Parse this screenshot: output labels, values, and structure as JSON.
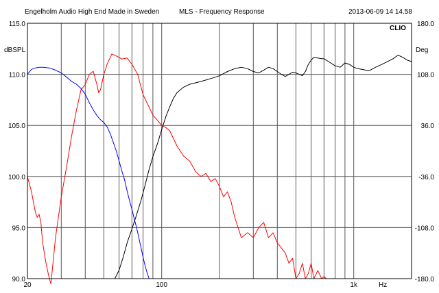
{
  "header": {
    "left": "Engelholm Audio High End Made in Sweden",
    "center": "MLS - Frequency Response",
    "right": "2013-06-09 14 14.58",
    "brand": "CLIO"
  },
  "chart_data": {
    "type": "line",
    "xscale": "log",
    "xlim": [
      20,
      2000
    ],
    "ylabel": "dBSPL",
    "ylim": [
      90,
      115
    ],
    "y2label": "Deg",
    "y2lim": [
      -180,
      180
    ],
    "xunit": "Hz",
    "x_tick_labels": [
      {
        "value": 20,
        "label": "20"
      },
      {
        "value": 100,
        "label": "100"
      },
      {
        "value": 1000,
        "label": "1k"
      }
    ],
    "y_ticks": [
      {
        "value": 115,
        "label": "115.0"
      },
      {
        "value": 110,
        "label": "110.0"
      },
      {
        "value": 105,
        "label": "105.0"
      },
      {
        "value": 100,
        "label": "100.0"
      },
      {
        "value": 95,
        "label": "95.0"
      },
      {
        "value": 90,
        "label": "90.0"
      }
    ],
    "y2_ticks": [
      {
        "value": 180,
        "label": "180.0"
      },
      {
        "value": 108,
        "label": "108.0"
      },
      {
        "value": 36,
        "label": "36.0"
      },
      {
        "value": -36,
        "label": "-36.0"
      },
      {
        "value": -108,
        "label": "-108.0"
      },
      {
        "value": -180,
        "label": "-180.0"
      }
    ],
    "grid": true,
    "series": [
      {
        "color": "#ff0000",
        "axis": "left",
        "x": [
          20,
          21,
          22,
          22.5,
          23,
          23.5,
          24,
          25,
          26,
          26.5,
          27,
          28,
          30,
          32,
          34,
          36,
          38,
          40,
          42,
          44,
          46,
          47,
          48,
          50,
          52,
          55,
          58,
          62,
          66,
          70,
          75,
          80,
          85,
          90,
          95,
          100,
          105,
          110,
          120,
          130,
          140,
          150,
          160,
          170,
          180,
          190,
          200,
          210,
          220,
          230,
          240,
          250,
          260,
          280,
          300,
          320,
          340,
          360,
          380,
          400,
          420,
          440,
          460,
          480,
          500,
          520,
          540,
          560,
          580,
          600,
          620,
          650,
          680,
          700,
          720,
          750
        ],
        "values": [
          100.0,
          98.5,
          96.5,
          96.0,
          96.3,
          95.5,
          93.5,
          91.5,
          90.0,
          89.5,
          91.0,
          94.0,
          98.0,
          101.0,
          104.0,
          106.5,
          108.5,
          109.0,
          110.0,
          110.3,
          109.0,
          108.2,
          108.5,
          110.0,
          111.0,
          112.0,
          111.8,
          111.5,
          111.6,
          111.0,
          110.0,
          108.0,
          107.0,
          106.0,
          105.5,
          105.0,
          104.8,
          104.5,
          103.0,
          102.0,
          101.5,
          100.5,
          100.0,
          100.3,
          99.5,
          99.8,
          99.0,
          98.0,
          98.5,
          97.5,
          96.0,
          95.0,
          94.0,
          94.5,
          94.0,
          95.0,
          95.5,
          94.0,
          94.5,
          93.5,
          93.0,
          92.5,
          91.5,
          92.0,
          90.0,
          90.5,
          91.5,
          90.0,
          90.5,
          91.5,
          90.0,
          90.8,
          90.0,
          90.2,
          90.0,
          90.0
        ]
      },
      {
        "color": "#0000ff",
        "axis": "right",
        "x": [
          20,
          21,
          22,
          23,
          24,
          26,
          28,
          30,
          32,
          34,
          36,
          38,
          40,
          42,
          44,
          46,
          48,
          50,
          52,
          54,
          56,
          58,
          60,
          62,
          64,
          66,
          68,
          70,
          72,
          74,
          76,
          78,
          80,
          82,
          84,
          86,
          88,
          90,
          95,
          100,
          200,
          500,
          1000,
          2000
        ],
        "values": [
          108,
          115,
          117,
          118,
          118,
          117,
          114,
          110,
          104,
          98,
          94,
          88,
          80,
          68,
          58,
          50,
          44,
          40,
          34,
          24,
          12,
          0,
          -14,
          -28,
          -40,
          -56,
          -70,
          -82,
          -96,
          -108,
          -122,
          -136,
          -150,
          -162,
          -172,
          -180,
          -180,
          -180,
          -180,
          -180,
          -180,
          -180,
          -180,
          -180
        ]
      },
      {
        "color": "#000000",
        "axis": "right",
        "x": [
          20,
          30,
          40,
          50,
          55,
          57,
          60,
          63,
          66,
          70,
          74,
          78,
          82,
          86,
          90,
          95,
          100,
          105,
          110,
          115,
          120,
          130,
          140,
          150,
          160,
          170,
          180,
          200,
          220,
          240,
          260,
          280,
          300,
          320,
          340,
          360,
          380,
          400,
          420,
          440,
          460,
          480,
          500,
          520,
          540,
          560,
          580,
          600,
          620,
          650,
          680,
          700,
          720,
          760,
          800,
          850,
          900,
          950,
          1000,
          1050,
          1100,
          1200,
          1300,
          1400,
          1500,
          1600,
          1700,
          1800,
          1900,
          2000
        ],
        "values": [
          -180,
          -180,
          -180,
          -180,
          -180,
          -180,
          -168,
          -150,
          -130,
          -110,
          -90,
          -70,
          -48,
          -26,
          -8,
          10,
          30,
          48,
          62,
          74,
          82,
          90,
          94,
          96,
          98,
          100,
          102,
          106,
          112,
          116,
          118,
          116,
          112,
          110,
          114,
          118,
          116,
          112,
          108,
          105,
          108,
          111,
          110,
          108,
          106,
          112,
          122,
          128,
          132,
          131,
          130,
          130,
          128,
          124,
          120,
          118,
          124,
          122,
          118,
          116,
          115,
          113,
          118,
          122,
          126,
          130,
          135,
          132,
          128,
          126
        ]
      }
    ]
  }
}
